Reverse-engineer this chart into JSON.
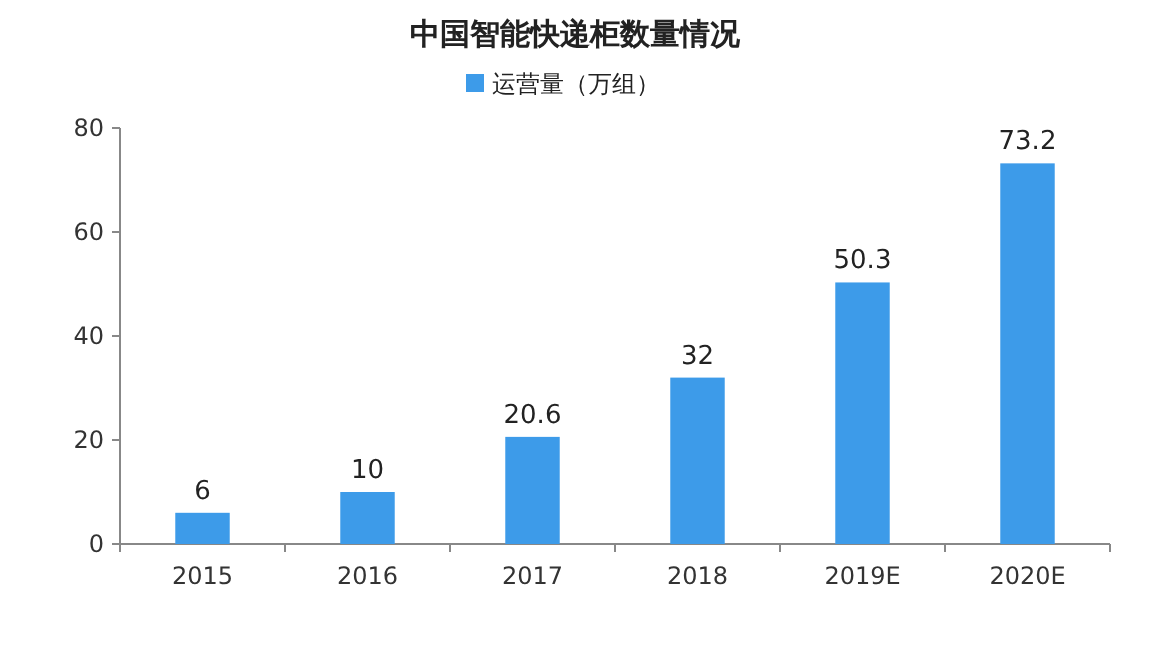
{
  "chart_data": {
    "type": "bar",
    "title": "中国智能快递柜数量情况",
    "categories": [
      "2015",
      "2016",
      "2017",
      "2018",
      "2019E",
      "2020E"
    ],
    "series": [
      {
        "name": "运营量（万组）",
        "color": "#3d9be9",
        "values": [
          6,
          10,
          20.6,
          32,
          50.3,
          73.2
        ]
      }
    ],
    "ylim": [
      0,
      80
    ],
    "yticks": [
      0,
      20,
      40,
      60,
      80
    ],
    "data_labels": true,
    "legend": "top"
  }
}
